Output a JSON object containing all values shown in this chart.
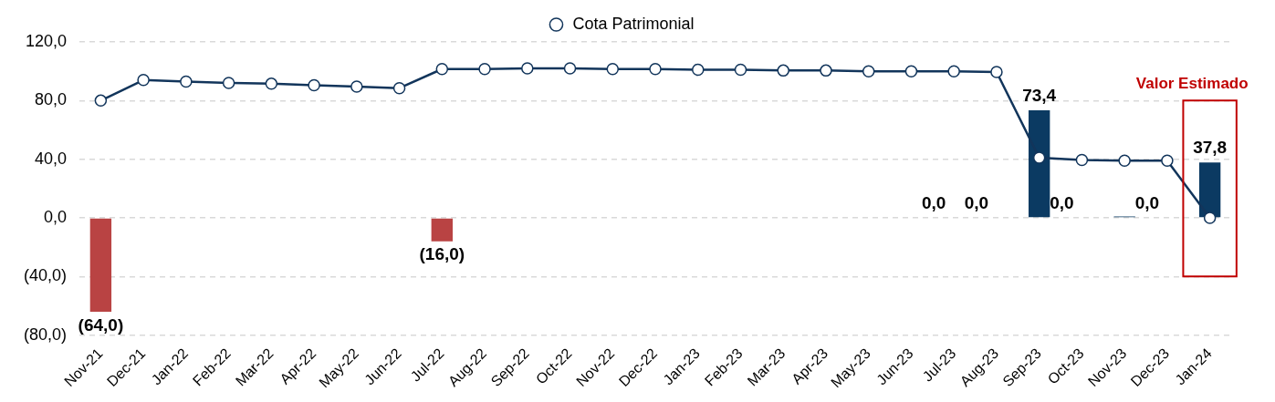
{
  "chart_data": {
    "type": "bar",
    "categories": [
      "Nov-21",
      "Dec-21",
      "Jan-22",
      "Feb-22",
      "Mar-22",
      "Apr-22",
      "May-22",
      "Jun-22",
      "Jul-22",
      "Aug-22",
      "Sep-22",
      "Oct-22",
      "Nov-22",
      "Dec-22",
      "Jan-23",
      "Feb-23",
      "Mar-23",
      "Apr-23",
      "May-23",
      "Jun-23",
      "Jul-23",
      "Aug-23",
      "Sep-23",
      "Oct-23",
      "Nov-23",
      "Dec-23",
      "Jan-24"
    ],
    "series": [
      {
        "colors": [
          "#b94343",
          null,
          null,
          null,
          null,
          null,
          null,
          null,
          "#b94343",
          null,
          null,
          null,
          null,
          null,
          null,
          null,
          null,
          null,
          null,
          null,
          "#0b3a62",
          "#0b3a62",
          "#0b3a62",
          "#0b3a62",
          "#0b3a62",
          "#0b3a62",
          "#0b3a62"
        ],
        "values": [
          -64.0,
          null,
          null,
          null,
          null,
          null,
          null,
          null,
          -16.0,
          null,
          null,
          null,
          null,
          null,
          null,
          null,
          null,
          null,
          null,
          null,
          0.0,
          0.0,
          73.4,
          0.0,
          1.0,
          0.0,
          37.8
        ],
        "value_labels": [
          "(64,0)",
          null,
          null,
          null,
          null,
          null,
          null,
          null,
          "(16,0)",
          null,
          null,
          null,
          null,
          null,
          null,
          null,
          null,
          null,
          null,
          null,
          "0,0",
          "0,0",
          "73,4",
          "0,0",
          null,
          "0,0",
          "37,8"
        ]
      },
      {
        "type": "line",
        "name": "Cota Patrimonial",
        "color": "#12355b",
        "marker": "circle",
        "values": [
          80,
          94,
          93,
          92,
          91.5,
          90.5,
          89.5,
          88.5,
          101.5,
          101.5,
          102,
          102,
          101.5,
          101.5,
          101,
          101,
          100.5,
          100.5,
          100,
          100,
          100,
          99.5,
          41,
          39.5,
          39,
          39,
          0
        ]
      }
    ],
    "ylim": [
      -80,
      120
    ],
    "yticks": [
      {
        "value": -80,
        "label": "(80,0)"
      },
      {
        "value": -40,
        "label": "(40,0)"
      },
      {
        "value": 0,
        "label": "0,0"
      },
      {
        "value": 40,
        "label": "40,0"
      },
      {
        "value": 80,
        "label": "80,0"
      },
      {
        "value": 120,
        "label": "120,0"
      }
    ],
    "grid": "y",
    "legend": "top",
    "annotations": [
      "Valor Estimado"
    ]
  }
}
